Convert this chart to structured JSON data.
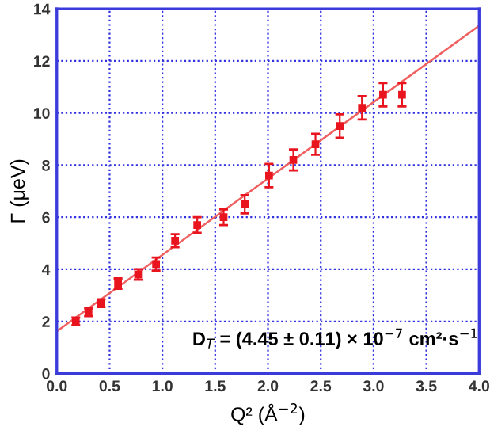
{
  "chart_data": {
    "type": "scatter",
    "xlabel": "Q² (Å$^{−2}$)",
    "ylabel": "Γ (μeV)",
    "xlim": [
      0,
      4
    ],
    "ylim": [
      0,
      14
    ],
    "xticks": [
      {
        "value": 0,
        "label": "0.0"
      },
      {
        "value": 0.5,
        "label": "0.5"
      },
      {
        "value": 1,
        "label": "1.0"
      },
      {
        "value": 1.5,
        "label": "1.5"
      },
      {
        "value": 2,
        "label": "2.0"
      },
      {
        "value": 2.5,
        "label": "2.5"
      },
      {
        "value": 3,
        "label": "3.0"
      },
      {
        "value": 3.5,
        "label": "3.5"
      },
      {
        "value": 4,
        "label": "4.0"
      }
    ],
    "yticks": [
      0,
      2,
      4,
      6,
      8,
      10,
      12,
      14
    ],
    "grid": true,
    "annotations": [
      "D$_{T}$ = (4.45 ± 0.11) × 10$^{−7}$ cm²·s$^{−1}$"
    ],
    "series": [
      {
        "marker": "square",
        "color": "#e8141e",
        "x": [
          0.18,
          0.3,
          0.42,
          0.58,
          0.77,
          0.94,
          1.12,
          1.33,
          1.58,
          1.78,
          2.01,
          2.24,
          2.45,
          2.68,
          2.89,
          3.09,
          3.27
        ],
        "values": [
          2.0,
          2.35,
          2.7,
          3.45,
          3.8,
          4.2,
          5.1,
          5.7,
          6.0,
          6.5,
          7.6,
          8.2,
          8.8,
          9.5,
          10.2,
          10.7,
          10.7
        ],
        "errors": [
          0.15,
          0.15,
          0.15,
          0.2,
          0.2,
          0.25,
          0.25,
          0.3,
          0.3,
          0.35,
          0.45,
          0.4,
          0.4,
          0.45,
          0.45,
          0.45,
          0.45
        ]
      },
      {
        "type": "line",
        "color": "#f06060",
        "x": [
          0,
          4
        ],
        "values": [
          1.62,
          13.35
        ]
      }
    ]
  }
}
